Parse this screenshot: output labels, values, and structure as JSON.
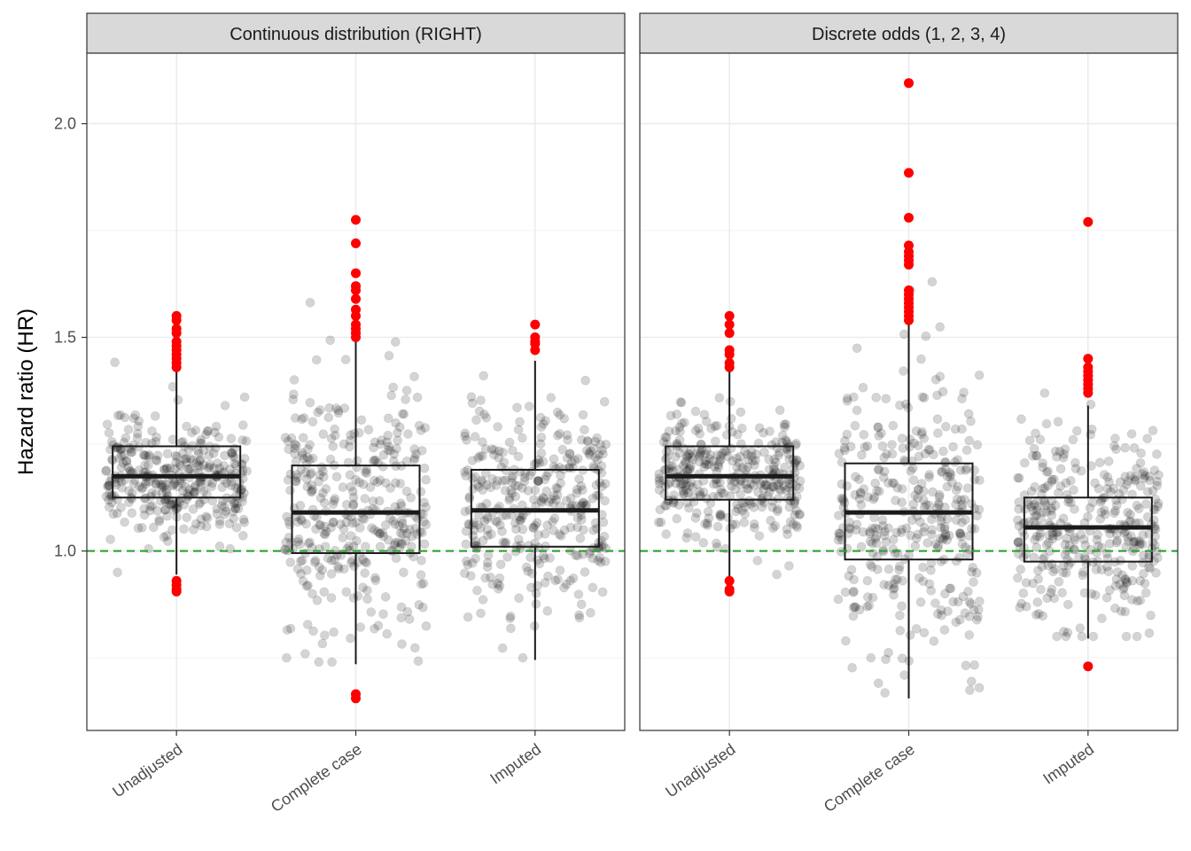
{
  "chart_data": {
    "type": "boxplot",
    "ylabel": "Hazard ratio (HR)",
    "xlabel": "",
    "ylim": [
      0.58,
      2.165
    ],
    "y_ticks": [
      1.0,
      1.5,
      2.0
    ],
    "y_tick_labels": [
      "1.0",
      "1.5",
      "2.0"
    ],
    "y_minor_ticks": [
      0.75,
      1.25,
      1.75
    ],
    "categories": [
      "Unadjusted",
      "Complete case",
      "Imputed"
    ],
    "reference_line": {
      "y": 1.0,
      "color": "#2ca02c",
      "style": "dashed"
    },
    "grid": true,
    "colors": {
      "points": "#000000",
      "outliers": "#ff0000",
      "strip_bg": "#d9d9d9",
      "grid": "#ebebeb"
    },
    "panels": [
      {
        "title": "Continuous distribution (RIGHT)",
        "boxes": [
          {
            "category": "Unadjusted",
            "q1": 1.125,
            "median": 1.175,
            "q3": 1.245,
            "whisker_low": 0.945,
            "whisker_high": 1.425,
            "spread": 0.07,
            "outliers": [
              1.55,
              1.54,
              1.52,
              1.51,
              1.49,
              1.48,
              1.47,
              1.46,
              1.45,
              1.44,
              1.43,
              0.93,
              0.92,
              0.91,
              0.905
            ]
          },
          {
            "category": "Complete case",
            "q1": 0.995,
            "median": 1.09,
            "q3": 1.2,
            "whisker_low": 0.735,
            "whisker_high": 1.49,
            "spread": 0.15,
            "outliers": [
              1.775,
              1.72,
              1.65,
              1.62,
              1.61,
              1.59,
              1.565,
              1.55,
              1.53,
              1.52,
              1.51,
              1.5,
              0.665,
              0.655
            ]
          },
          {
            "category": "Imputed",
            "q1": 1.01,
            "median": 1.095,
            "q3": 1.19,
            "whisker_low": 0.745,
            "whisker_high": 1.445,
            "spread": 0.13,
            "outliers": [
              1.53,
              1.5,
              1.49,
              1.485,
              1.47
            ]
          }
        ]
      },
      {
        "title": "Discrete odds (1, 2, 3, 4)",
        "boxes": [
          {
            "category": "Unadjusted",
            "q1": 1.12,
            "median": 1.175,
            "q3": 1.245,
            "whisker_low": 0.94,
            "whisker_high": 1.43,
            "spread": 0.07,
            "outliers": [
              1.55,
              1.53,
              1.51,
              1.47,
              1.46,
              1.44,
              1.43,
              0.93,
              0.91,
              0.905
            ]
          },
          {
            "category": "Complete case",
            "q1": 0.98,
            "median": 1.09,
            "q3": 1.205,
            "whisker_low": 0.655,
            "whisker_high": 1.53,
            "spread": 0.16,
            "outliers": [
              2.095,
              1.885,
              1.78,
              1.715,
              1.7,
              1.69,
              1.68,
              1.67,
              1.61,
              1.6,
              1.59,
              1.58,
              1.57,
              1.56,
              1.55,
              1.54
            ]
          },
          {
            "category": "Imputed",
            "q1": 0.975,
            "median": 1.055,
            "q3": 1.125,
            "whisker_low": 0.795,
            "whisker_high": 1.34,
            "spread": 0.11,
            "outliers": [
              1.77,
              1.45,
              1.43,
              1.42,
              1.41,
              1.4,
              1.39,
              1.38,
              1.37,
              0.73
            ]
          }
        ]
      }
    ]
  }
}
